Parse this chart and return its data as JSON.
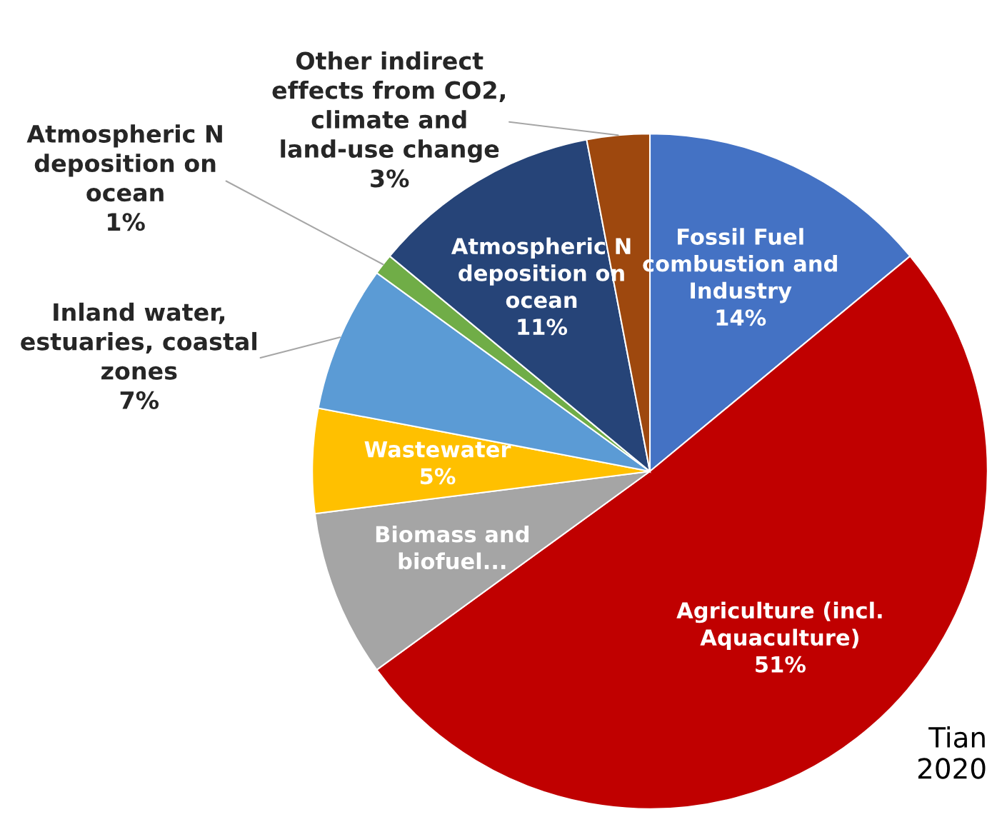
{
  "chart_data": {
    "type": "pie",
    "categories": [
      "Fossil Fuel combustion and Industry",
      "Agriculture (incl. Aquaculture)",
      "Biomass and biofuel...",
      "Wastewater",
      "Inland water, estuaries, coastal zones",
      "Atmospheric N deposition on ocean",
      "Atmospheric N deposition on ocean",
      "Other indirect effects from CO2, climate and land-use change"
    ],
    "values": [
      14,
      51,
      8,
      5,
      7,
      1,
      11,
      3
    ],
    "value_labels": [
      "14%",
      "51%",
      null,
      "5%",
      "7%",
      "1%",
      "11%",
      "3%"
    ],
    "colors": [
      "#4472c4",
      "#c00000",
      "#a5a5a5",
      "#ffc000",
      "#5b9bd5",
      "#70ad47",
      "#264478",
      "#9e480e"
    ],
    "annotations": [
      "Tian 2020"
    ]
  }
}
